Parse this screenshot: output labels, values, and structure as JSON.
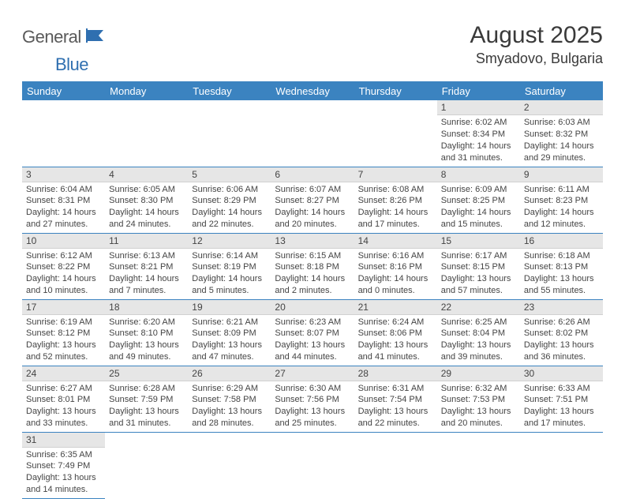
{
  "logo": {
    "part1": "General",
    "part2": "Blue"
  },
  "title": "August 2025",
  "location": "Smyadovo, Bulgaria",
  "colors": {
    "header_bg": "#3b83c0",
    "header_text": "#ffffff",
    "daynum_bg": "#e6e6e6",
    "border": "#3b83c0",
    "text": "#444444",
    "logo_gray": "#5a5a5a",
    "logo_blue": "#2f6fb0",
    "page_bg": "#ffffff"
  },
  "weekdays": [
    "Sunday",
    "Monday",
    "Tuesday",
    "Wednesday",
    "Thursday",
    "Friday",
    "Saturday"
  ],
  "first_day_index": 5,
  "days": [
    {
      "n": "1",
      "sunrise": "6:02 AM",
      "sunset": "8:34 PM",
      "dl": "14 hours and 31 minutes."
    },
    {
      "n": "2",
      "sunrise": "6:03 AM",
      "sunset": "8:32 PM",
      "dl": "14 hours and 29 minutes."
    },
    {
      "n": "3",
      "sunrise": "6:04 AM",
      "sunset": "8:31 PM",
      "dl": "14 hours and 27 minutes."
    },
    {
      "n": "4",
      "sunrise": "6:05 AM",
      "sunset": "8:30 PM",
      "dl": "14 hours and 24 minutes."
    },
    {
      "n": "5",
      "sunrise": "6:06 AM",
      "sunset": "8:29 PM",
      "dl": "14 hours and 22 minutes."
    },
    {
      "n": "6",
      "sunrise": "6:07 AM",
      "sunset": "8:27 PM",
      "dl": "14 hours and 20 minutes."
    },
    {
      "n": "7",
      "sunrise": "6:08 AM",
      "sunset": "8:26 PM",
      "dl": "14 hours and 17 minutes."
    },
    {
      "n": "8",
      "sunrise": "6:09 AM",
      "sunset": "8:25 PM",
      "dl": "14 hours and 15 minutes."
    },
    {
      "n": "9",
      "sunrise": "6:11 AM",
      "sunset": "8:23 PM",
      "dl": "14 hours and 12 minutes."
    },
    {
      "n": "10",
      "sunrise": "6:12 AM",
      "sunset": "8:22 PM",
      "dl": "14 hours and 10 minutes."
    },
    {
      "n": "11",
      "sunrise": "6:13 AM",
      "sunset": "8:21 PM",
      "dl": "14 hours and 7 minutes."
    },
    {
      "n": "12",
      "sunrise": "6:14 AM",
      "sunset": "8:19 PM",
      "dl": "14 hours and 5 minutes."
    },
    {
      "n": "13",
      "sunrise": "6:15 AM",
      "sunset": "8:18 PM",
      "dl": "14 hours and 2 minutes."
    },
    {
      "n": "14",
      "sunrise": "6:16 AM",
      "sunset": "8:16 PM",
      "dl": "14 hours and 0 minutes."
    },
    {
      "n": "15",
      "sunrise": "6:17 AM",
      "sunset": "8:15 PM",
      "dl": "13 hours and 57 minutes."
    },
    {
      "n": "16",
      "sunrise": "6:18 AM",
      "sunset": "8:13 PM",
      "dl": "13 hours and 55 minutes."
    },
    {
      "n": "17",
      "sunrise": "6:19 AM",
      "sunset": "8:12 PM",
      "dl": "13 hours and 52 minutes."
    },
    {
      "n": "18",
      "sunrise": "6:20 AM",
      "sunset": "8:10 PM",
      "dl": "13 hours and 49 minutes."
    },
    {
      "n": "19",
      "sunrise": "6:21 AM",
      "sunset": "8:09 PM",
      "dl": "13 hours and 47 minutes."
    },
    {
      "n": "20",
      "sunrise": "6:23 AM",
      "sunset": "8:07 PM",
      "dl": "13 hours and 44 minutes."
    },
    {
      "n": "21",
      "sunrise": "6:24 AM",
      "sunset": "8:06 PM",
      "dl": "13 hours and 41 minutes."
    },
    {
      "n": "22",
      "sunrise": "6:25 AM",
      "sunset": "8:04 PM",
      "dl": "13 hours and 39 minutes."
    },
    {
      "n": "23",
      "sunrise": "6:26 AM",
      "sunset": "8:02 PM",
      "dl": "13 hours and 36 minutes."
    },
    {
      "n": "24",
      "sunrise": "6:27 AM",
      "sunset": "8:01 PM",
      "dl": "13 hours and 33 minutes."
    },
    {
      "n": "25",
      "sunrise": "6:28 AM",
      "sunset": "7:59 PM",
      "dl": "13 hours and 31 minutes."
    },
    {
      "n": "26",
      "sunrise": "6:29 AM",
      "sunset": "7:58 PM",
      "dl": "13 hours and 28 minutes."
    },
    {
      "n": "27",
      "sunrise": "6:30 AM",
      "sunset": "7:56 PM",
      "dl": "13 hours and 25 minutes."
    },
    {
      "n": "28",
      "sunrise": "6:31 AM",
      "sunset": "7:54 PM",
      "dl": "13 hours and 22 minutes."
    },
    {
      "n": "29",
      "sunrise": "6:32 AM",
      "sunset": "7:53 PM",
      "dl": "13 hours and 20 minutes."
    },
    {
      "n": "30",
      "sunrise": "6:33 AM",
      "sunset": "7:51 PM",
      "dl": "13 hours and 17 minutes."
    },
    {
      "n": "31",
      "sunrise": "6:35 AM",
      "sunset": "7:49 PM",
      "dl": "13 hours and 14 minutes."
    }
  ],
  "labels": {
    "sunrise": "Sunrise:",
    "sunset": "Sunset:",
    "daylight": "Daylight:"
  }
}
